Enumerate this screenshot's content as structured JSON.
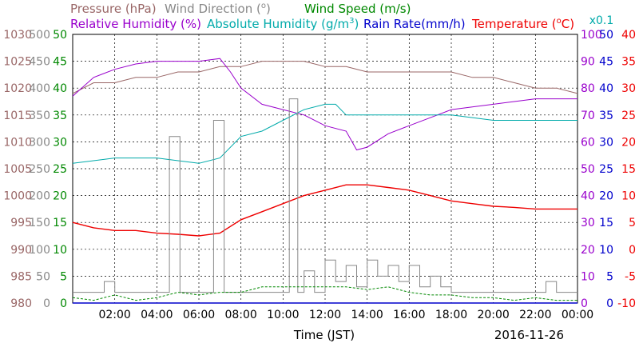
{
  "chart_data": {
    "type": "line",
    "date_label": "2016-11-26",
    "xlabel": "Time (JST)",
    "x_ticks": [
      "02:00",
      "04:00",
      "06:00",
      "08:00",
      "10:00",
      "12:00",
      "14:00",
      "16:00",
      "18:00",
      "20:00",
      "22:00",
      "00:00"
    ],
    "x_range": [
      "00:00",
      "24:00"
    ],
    "grid": true,
    "legend": [
      {
        "label": "Pressure (hPa)",
        "color": "#996666"
      },
      {
        "label": "Wind Direction (",
        "degree_label": "o",
        "label_end": ")",
        "color": "#888888"
      },
      {
        "label": "Wind Speed (m/s)",
        "color": "#008800"
      },
      {
        "label": "Relative Humidity (%)",
        "color": "#9900cc"
      },
      {
        "label": "Absolute Humidity (g/m",
        "exponent": "3",
        "label_end": ")",
        "color": "#00aaaa"
      },
      {
        "label": "Rain Rate(mm/h)",
        "color": "#0000cc"
      },
      {
        "label": "Temperature (",
        "degree_label": "o",
        "label_end": "C)",
        "color": "#ee0000"
      }
    ],
    "axes": [
      {
        "name": "pressure",
        "color": "#996666",
        "side": "left",
        "ticks": [
          "980",
          "985",
          "990",
          "995",
          "1000",
          "1005",
          "1010",
          "1015",
          "1020",
          "1025",
          "1030"
        ],
        "range": [
          980,
          1030
        ]
      },
      {
        "name": "wind_direction",
        "color": "#888888",
        "side": "left",
        "ticks": [
          "0",
          "50",
          "100",
          "150",
          "200",
          "250",
          "300",
          "350",
          "400",
          "450",
          "500"
        ],
        "range": [
          0,
          500
        ]
      },
      {
        "name": "wind_speed",
        "color": "#008800",
        "side": "left",
        "ticks": [
          "0",
          "5",
          "10",
          "15",
          "20",
          "25",
          "30",
          "35",
          "40",
          "45",
          "50"
        ],
        "range": [
          0,
          50
        ]
      },
      {
        "name": "relative_humidity",
        "color": "#9900cc",
        "side": "right",
        "ticks": [
          "0",
          "10",
          "20",
          "30",
          "40",
          "50",
          "60",
          "70",
          "80",
          "90",
          "100"
        ],
        "range": [
          0,
          100
        ]
      },
      {
        "name": "rain_rate",
        "color": "#0000cc",
        "side": "right",
        "ticks": [
          "0",
          "5",
          "10",
          "15",
          "20",
          "25",
          "30",
          "35",
          "40",
          "45",
          "50"
        ],
        "range": [
          0,
          50
        ],
        "scale_label": "x0.1",
        "scale_color": "#00aaaa"
      },
      {
        "name": "temperature",
        "color": "#ee0000",
        "side": "right",
        "ticks": [
          "-10",
          "-5",
          "0",
          "5",
          "10",
          "15",
          "20",
          "25",
          "30",
          "35",
          "40"
        ],
        "range": [
          -10,
          40
        ]
      }
    ],
    "series": [
      {
        "name": "Pressure (hPa)",
        "axis": "pressure",
        "color": "#996666",
        "x": [
          0,
          1,
          2,
          3,
          4,
          5,
          6,
          7,
          8,
          9,
          10,
          11,
          12,
          13,
          14,
          15,
          16,
          17,
          18,
          19,
          20,
          21,
          22,
          23,
          24
        ],
        "y": [
          1019,
          1021,
          1021,
          1022,
          1022,
          1023,
          1023,
          1024,
          1024,
          1025,
          1025,
          1025,
          1024,
          1024,
          1023,
          1023,
          1023,
          1023,
          1023,
          1022,
          1022,
          1021,
          1020,
          1020,
          1019
        ]
      },
      {
        "name": "Relative Humidity (%)",
        "axis": "relative_humidity",
        "color": "#9900cc",
        "x": [
          0,
          1,
          2,
          3,
          4,
          5,
          6,
          7,
          7.5,
          8,
          9,
          10,
          11,
          12,
          13,
          13.5,
          14,
          15,
          16,
          17,
          18,
          19,
          20,
          21,
          22,
          23,
          24
        ],
        "y": [
          77,
          84,
          87,
          89,
          90,
          90,
          90,
          91,
          86,
          80,
          74,
          72,
          70,
          66,
          64,
          57,
          58,
          63,
          66,
          69,
          72,
          73,
          74,
          75,
          76,
          76,
          76
        ]
      },
      {
        "name": "Absolute Humidity",
        "axis": "rain_rate",
        "color": "#00aaaa",
        "x": [
          0,
          2,
          4,
          6,
          7,
          8,
          9,
          10,
          11,
          12,
          12.5,
          13,
          14,
          16,
          18,
          20,
          22,
          24
        ],
        "y": [
          26,
          27,
          27,
          26,
          27,
          31,
          32,
          34,
          36,
          37,
          37,
          35,
          35,
          35,
          35,
          34,
          34,
          34
        ]
      },
      {
        "name": "Temperature",
        "axis": "temperature",
        "color": "#ee0000",
        "x": [
          0,
          1,
          2,
          3,
          4,
          5,
          6,
          7,
          8,
          9,
          10,
          11,
          12,
          13,
          14,
          15,
          16,
          17,
          18,
          19,
          20,
          21,
          22,
          23,
          24
        ],
        "y": [
          5,
          4,
          3.5,
          3.5,
          3,
          2.8,
          2.5,
          3,
          5.5,
          7,
          8.5,
          10,
          11,
          12,
          12,
          11.5,
          11,
          10,
          9,
          8.5,
          8,
          7.8,
          7.5,
          7.5,
          7.5
        ]
      },
      {
        "name": "Wind Direction",
        "axis": "wind_direction",
        "color": "#888888",
        "x": [
          0,
          0.5,
          1.5,
          2,
          4.4,
          4.6,
          4.9,
          5.1,
          5.3,
          6,
          6.6,
          6.7,
          7.1,
          7.2,
          10.2,
          10.3,
          10.6,
          10.7,
          11,
          11.5,
          12,
          12.5,
          13,
          13.5,
          14,
          14.5,
          15,
          15.5,
          16,
          16.5,
          17,
          17.5,
          18,
          18.5,
          19,
          20,
          21,
          22,
          22.5,
          23,
          24
        ],
        "y": [
          20,
          20,
          40,
          20,
          20,
          310,
          310,
          20,
          20,
          20,
          20,
          340,
          340,
          20,
          20,
          380,
          380,
          20,
          60,
          20,
          80,
          40,
          70,
          30,
          80,
          50,
          70,
          40,
          70,
          30,
          50,
          30,
          20,
          20,
          20,
          20,
          20,
          20,
          40,
          20,
          20
        ]
      },
      {
        "name": "Wind Speed (m/s)",
        "axis": "wind_speed",
        "color": "#008800",
        "x": [
          0,
          1,
          2,
          3,
          4,
          5,
          6,
          7,
          8,
          9,
          10,
          11,
          12,
          13,
          14,
          15,
          16,
          17,
          18,
          19,
          20,
          21,
          22,
          23,
          24
        ],
        "y": [
          1,
          0.5,
          1.5,
          0.5,
          1,
          2,
          1.5,
          2,
          2,
          3,
          3,
          3,
          3,
          3,
          2.5,
          3,
          2,
          1.5,
          1.5,
          1,
          1,
          0.5,
          1,
          0.5,
          0.5
        ]
      },
      {
        "name": "Rain Rate(mm/h)",
        "axis": "rain_rate",
        "color": "#0000cc",
        "x": [
          0,
          24
        ],
        "y": [
          0,
          0
        ]
      }
    ]
  }
}
